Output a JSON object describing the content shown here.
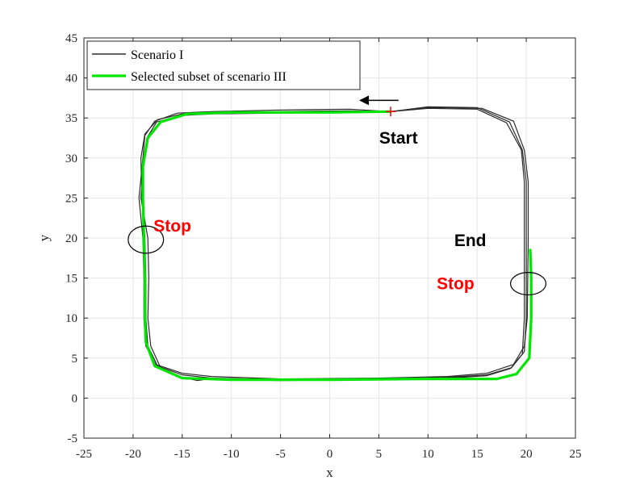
{
  "chart_data": {
    "type": "line",
    "xlabel": "x",
    "ylabel": "y",
    "xlim": [
      -25,
      25
    ],
    "ylim": [
      -5,
      45
    ],
    "grid": true,
    "legend_position": "top-left",
    "xticks": [
      -25,
      -20,
      -15,
      -10,
      -5,
      0,
      5,
      10,
      15,
      20,
      25
    ],
    "xtick_labels": [
      "-25",
      "-20",
      "-15",
      "-10",
      "-5",
      "0",
      "5",
      "10",
      "15",
      "20",
      "25"
    ],
    "yticks": [
      -5,
      0,
      5,
      10,
      15,
      20,
      25,
      30,
      35,
      40,
      45
    ],
    "ytick_labels": [
      "-5",
      "0",
      "5",
      "10",
      "15",
      "20",
      "25",
      "30",
      "35",
      "40",
      "45"
    ],
    "series": [
      {
        "name": "Scenario I",
        "color": "#2b2b2b",
        "points": [
          [
            6.2,
            35.8
          ],
          [
            2,
            35.9
          ],
          [
            -5,
            35.8
          ],
          [
            -12,
            35.6
          ],
          [
            -15,
            35.5
          ],
          [
            -17.5,
            34.8
          ],
          [
            -18.8,
            33
          ],
          [
            -19.2,
            30
          ],
          [
            -19.1,
            25
          ],
          [
            -18.8,
            20
          ],
          [
            -18.7,
            15
          ],
          [
            -18.7,
            10
          ],
          [
            -18.5,
            6.5
          ],
          [
            -17.5,
            4
          ],
          [
            -15,
            2.9
          ],
          [
            -12,
            2.5
          ],
          [
            -5,
            2.3
          ],
          [
            5,
            2.4
          ],
          [
            12,
            2.6
          ],
          [
            16,
            2.9
          ],
          [
            18.5,
            3.8
          ],
          [
            19.8,
            5.8
          ],
          [
            20,
            10
          ],
          [
            20,
            20
          ],
          [
            20,
            27
          ],
          [
            19.6,
            31
          ],
          [
            18.3,
            34.5
          ],
          [
            15,
            36.3
          ],
          [
            10,
            36.4
          ],
          [
            6.2,
            35.8
          ]
        ]
      },
      {
        "name": "Scenario I",
        "color": "#2b2b2b",
        "points": [
          [
            6.2,
            35.8
          ],
          [
            2,
            36.1
          ],
          [
            -5,
            36
          ],
          [
            -12,
            35.8
          ],
          [
            -15.5,
            35.6
          ],
          [
            -17.8,
            34.6
          ],
          [
            -18.8,
            32.8
          ],
          [
            -19,
            30
          ],
          [
            -19.4,
            25
          ],
          [
            -19,
            20
          ],
          [
            -18.9,
            15
          ],
          [
            -18.9,
            10
          ],
          [
            -18.7,
            6.5
          ],
          [
            -17.7,
            4.2
          ],
          [
            -15,
            3.1
          ],
          [
            -12,
            2.7
          ],
          [
            -5,
            2.4
          ],
          [
            5,
            2.5
          ],
          [
            12,
            2.7
          ],
          [
            16,
            3.1
          ],
          [
            18.7,
            4.2
          ],
          [
            19.8,
            6.5
          ],
          [
            20.1,
            10
          ],
          [
            20.2,
            20
          ],
          [
            20.2,
            27
          ],
          [
            19.8,
            31
          ],
          [
            18.7,
            34.6
          ],
          [
            15.5,
            36.2
          ],
          [
            10,
            36.3
          ],
          [
            6.2,
            35.8
          ]
        ]
      },
      {
        "name": "Scenario I",
        "color": "#2b2b2b",
        "points": [
          [
            6.2,
            35.8
          ],
          [
            2,
            35.7
          ],
          [
            -5,
            35.6
          ],
          [
            -12,
            35.5
          ],
          [
            -15.2,
            35.3
          ],
          [
            -17.6,
            34.5
          ],
          [
            -18.6,
            32.5
          ],
          [
            -18.9,
            30
          ],
          [
            -19.2,
            25
          ],
          [
            -18.5,
            20
          ],
          [
            -18.4,
            15
          ],
          [
            -18.5,
            10
          ],
          [
            -18.2,
            6.5
          ],
          [
            -17.2,
            3.8
          ],
          [
            -15,
            2.6
          ],
          [
            -13.5,
            2.2
          ],
          [
            -12.3,
            2.4
          ],
          [
            -5,
            2.2
          ],
          [
            5,
            2.3
          ],
          [
            12,
            2.5
          ],
          [
            16,
            2.8
          ],
          [
            18.4,
            3.7
          ],
          [
            19.6,
            5.5
          ],
          [
            19.8,
            10
          ],
          [
            19.8,
            20
          ],
          [
            19.8,
            27
          ],
          [
            19.5,
            31
          ],
          [
            18,
            34.4
          ],
          [
            15,
            36.1
          ],
          [
            10,
            36.2
          ],
          [
            6.2,
            35.8
          ]
        ]
      },
      {
        "name": "Selected subset of scenario III",
        "color": "#00e600",
        "points": [
          [
            6.2,
            35.8
          ],
          [
            0,
            35.7
          ],
          [
            -10,
            35.7
          ],
          [
            -14.5,
            35.5
          ],
          [
            -17.2,
            34.5
          ],
          [
            -18.5,
            32.5
          ],
          [
            -19,
            29
          ],
          [
            -19,
            25
          ],
          [
            -18.9,
            20
          ],
          [
            -18.8,
            15
          ],
          [
            -18.8,
            10
          ],
          [
            -18.7,
            7
          ],
          [
            -17.8,
            4
          ],
          [
            -15,
            2.5
          ],
          [
            -10,
            2.3
          ],
          [
            0,
            2.3
          ],
          [
            10,
            2.4
          ],
          [
            17,
            2.4
          ],
          [
            19,
            3
          ],
          [
            20.3,
            5
          ],
          [
            20.5,
            10
          ],
          [
            20.5,
            15
          ],
          [
            20.4,
            18.5
          ]
        ]
      }
    ],
    "annotations": [
      {
        "text": "Start",
        "x": 7,
        "y": 31.8,
        "color": "#000000"
      },
      {
        "text": "Stop",
        "x": -16,
        "y": 20.8,
        "color": "#ff0000"
      },
      {
        "text": "End",
        "x": 14.3,
        "y": 19,
        "color": "#000000"
      },
      {
        "text": "Stop",
        "x": 12.8,
        "y": 13.6,
        "color": "#ff0000"
      }
    ],
    "start_marker": {
      "x": 6.2,
      "y": 35.8,
      "symbol": "+",
      "color": "#ff0000"
    },
    "direction_arrow": {
      "from": [
        7,
        37.2
      ],
      "to": [
        3,
        37.2
      ]
    },
    "ellipses": [
      {
        "cx": -18.7,
        "cy": 19.8,
        "rx": 1.8,
        "ry": 1.7
      },
      {
        "cx": 20.2,
        "cy": 14.3,
        "rx": 1.8,
        "ry": 1.4
      }
    ]
  }
}
